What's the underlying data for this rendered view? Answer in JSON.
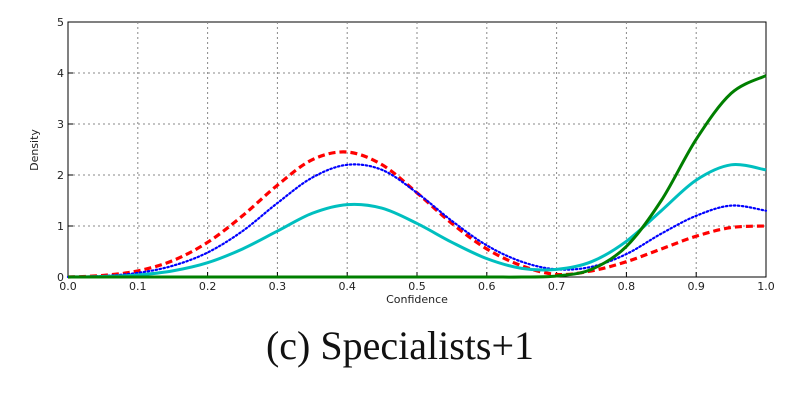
{
  "chart_data": {
    "type": "line",
    "xlabel": "Confidence",
    "ylabel": "Density",
    "xlim": [
      0.0,
      1.0
    ],
    "ylim": [
      0,
      5
    ],
    "xticks": [
      "0.0",
      "0.1",
      "0.2",
      "0.3",
      "0.4",
      "0.5",
      "0.6",
      "0.7",
      "0.8",
      "0.9",
      "1.0"
    ],
    "yticks": [
      "0",
      "1",
      "2",
      "3",
      "4",
      "5"
    ],
    "grid": true,
    "legend": "none",
    "series": [
      {
        "color": "#ff0000",
        "style": "dashed",
        "x": [
          0.0,
          0.05,
          0.1,
          0.15,
          0.2,
          0.25,
          0.3,
          0.35,
          0.4,
          0.45,
          0.5,
          0.55,
          0.6,
          0.65,
          0.7,
          0.75,
          0.8,
          0.85,
          0.9,
          0.95,
          1.0
        ],
        "y": [
          0.0,
          0.03,
          0.12,
          0.32,
          0.68,
          1.2,
          1.8,
          2.3,
          2.45,
          2.2,
          1.65,
          1.05,
          0.55,
          0.22,
          0.05,
          0.12,
          0.3,
          0.55,
          0.8,
          0.97,
          1.0
        ]
      },
      {
        "color": "#0000ff",
        "style": "dotted",
        "x": [
          0.0,
          0.05,
          0.1,
          0.15,
          0.2,
          0.25,
          0.3,
          0.35,
          0.4,
          0.45,
          0.5,
          0.55,
          0.6,
          0.65,
          0.7,
          0.75,
          0.8,
          0.85,
          0.9,
          0.95,
          1.0
        ],
        "y": [
          0.0,
          0.02,
          0.08,
          0.22,
          0.48,
          0.9,
          1.45,
          1.95,
          2.2,
          2.1,
          1.65,
          1.1,
          0.62,
          0.3,
          0.15,
          0.2,
          0.45,
          0.85,
          1.2,
          1.4,
          1.3
        ]
      },
      {
        "color": "#00bfbf",
        "style": "solid",
        "x": [
          0.0,
          0.05,
          0.1,
          0.15,
          0.2,
          0.25,
          0.3,
          0.35,
          0.4,
          0.45,
          0.5,
          0.55,
          0.6,
          0.65,
          0.7,
          0.75,
          0.8,
          0.85,
          0.9,
          0.95,
          1.0
        ],
        "y": [
          0.0,
          0.01,
          0.04,
          0.12,
          0.28,
          0.55,
          0.9,
          1.25,
          1.42,
          1.35,
          1.05,
          0.68,
          0.36,
          0.17,
          0.15,
          0.3,
          0.7,
          1.3,
          1.9,
          2.2,
          2.1
        ]
      },
      {
        "color": "#007f00",
        "style": "solid",
        "x": [
          0.0,
          0.1,
          0.2,
          0.3,
          0.4,
          0.5,
          0.6,
          0.65,
          0.7,
          0.75,
          0.8,
          0.85,
          0.9,
          0.95,
          1.0
        ],
        "y": [
          0.0,
          0.0,
          0.0,
          0.0,
          0.0,
          0.0,
          0.0,
          0.0,
          0.02,
          0.15,
          0.6,
          1.5,
          2.7,
          3.6,
          3.95
        ]
      }
    ]
  },
  "caption": "(c) Specialists+1"
}
